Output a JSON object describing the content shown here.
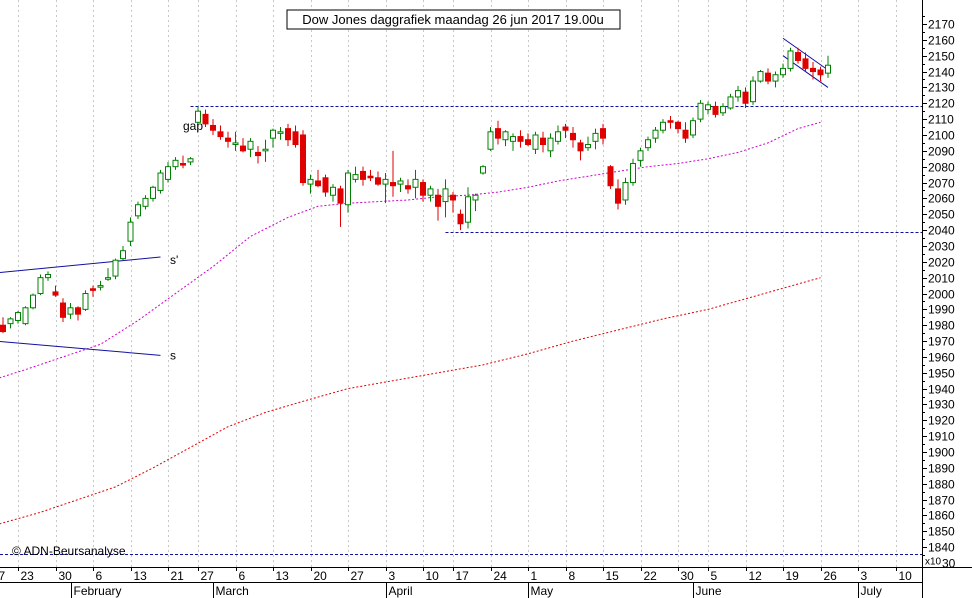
{
  "chart_data": {
    "type": "candlestick",
    "title": "Dow Jones daggrafiek maandag 26 jun 2017 19.00u",
    "watermark": "© ADN-Beursanalyse",
    "y_axis": {
      "min": 1830,
      "max": 2180,
      "ticks": [
        1840,
        1850,
        1860,
        1870,
        1880,
        1890,
        1900,
        1910,
        1920,
        1930,
        1940,
        1950,
        1960,
        1970,
        1980,
        1990,
        2000,
        2010,
        2020,
        2030,
        2040,
        2050,
        2060,
        2070,
        2080,
        2090,
        2100,
        2110,
        2120,
        2130,
        2140,
        2150,
        2160,
        2170
      ],
      "multiplier_label": "x10"
    },
    "x_axis": {
      "day_labels": [
        {
          "slot": -1,
          "label": "7"
        },
        {
          "slot": 2,
          "label": "23"
        },
        {
          "slot": 7,
          "label": "30"
        },
        {
          "slot": 12,
          "label": "6"
        },
        {
          "slot": 17,
          "label": "13"
        },
        {
          "slot": 22,
          "label": "21"
        },
        {
          "slot": 26,
          "label": "27"
        },
        {
          "slot": 31,
          "label": "6"
        },
        {
          "slot": 36,
          "label": "13"
        },
        {
          "slot": 41,
          "label": "20"
        },
        {
          "slot": 46,
          "label": "27"
        },
        {
          "slot": 51,
          "label": "3"
        },
        {
          "slot": 56,
          "label": "10"
        },
        {
          "slot": 60,
          "label": "17"
        },
        {
          "slot": 65,
          "label": "24"
        },
        {
          "slot": 70,
          "label": "1"
        },
        {
          "slot": 75,
          "label": "8"
        },
        {
          "slot": 80,
          "label": "15"
        },
        {
          "slot": 85,
          "label": "22"
        },
        {
          "slot": 90,
          "label": "30"
        },
        {
          "slot": 94,
          "label": "5"
        },
        {
          "slot": 99,
          "label": "12"
        },
        {
          "slot": 104,
          "label": "19"
        },
        {
          "slot": 109,
          "label": "26"
        },
        {
          "slot": 114,
          "label": "3"
        },
        {
          "slot": 119,
          "label": "10"
        }
      ],
      "month_labels": [
        {
          "slot": 9,
          "label": "February"
        },
        {
          "slot": 28,
          "label": "March"
        },
        {
          "slot": 51,
          "label": "April"
        },
        {
          "slot": 70,
          "label": "May"
        },
        {
          "slot": 92,
          "label": "June"
        },
        {
          "slot": 114,
          "label": "July"
        }
      ]
    },
    "candles": [
      [
        1980,
        1985,
        1975,
        1976
      ],
      [
        1981,
        1985,
        1978,
        1984
      ],
      [
        1983,
        1989,
        1981,
        1988
      ],
      [
        1981,
        1992,
        1980,
        1991
      ],
      [
        1991,
        2000,
        1990,
        1999
      ],
      [
        2000,
        2012,
        1999,
        2010
      ],
      [
        2010,
        2014,
        2008,
        2012
      ],
      [
        2001,
        2005,
        1998,
        1999
      ],
      [
        1994,
        1997,
        1982,
        1985
      ],
      [
        1987,
        1994,
        1984,
        1991
      ],
      [
        1991,
        1992,
        1983,
        1987
      ],
      [
        1990,
        2002,
        1989,
        2000
      ],
      [
        2003,
        2005,
        1998,
        2002
      ],
      [
        2004,
        2008,
        2002,
        2005
      ],
      [
        2009,
        2016,
        2008,
        2010
      ],
      [
        2011,
        2022,
        2009,
        2021
      ],
      [
        2022,
        2030,
        2021,
        2027
      ],
      [
        2033,
        2048,
        2030,
        2045
      ],
      [
        2049,
        2058,
        2047,
        2056
      ],
      [
        2055,
        2062,
        2053,
        2060
      ],
      [
        2060,
        2068,
        2058,
        2067
      ],
      [
        2065,
        2078,
        2063,
        2076
      ],
      [
        2072,
        2083,
        2070,
        2080
      ],
      [
        2080,
        2086,
        2078,
        2084
      ],
      [
        2082,
        2087,
        2079,
        2081
      ],
      [
        2083,
        2086,
        2081,
        2085
      ],
      [
        2108,
        2118,
        2107,
        2115
      ],
      [
        2113,
        2116,
        2105,
        2107
      ],
      [
        2106,
        2110,
        2100,
        2103
      ],
      [
        2102,
        2106,
        2097,
        2099
      ],
      [
        2098,
        2102,
        2092,
        2096
      ],
      [
        2094,
        2102,
        2090,
        2095
      ],
      [
        2093,
        2098,
        2089,
        2090
      ],
      [
        2091,
        2098,
        2086,
        2096
      ],
      [
        2089,
        2093,
        2082,
        2087
      ],
      [
        2090,
        2097,
        2083,
        2091
      ],
      [
        2098,
        2104,
        2092,
        2103
      ],
      [
        2101,
        2105,
        2097,
        2102
      ],
      [
        2104,
        2107,
        2093,
        2097
      ],
      [
        2102,
        2106,
        2092,
        2094
      ],
      [
        2100,
        2103,
        2068,
        2070
      ],
      [
        2069,
        2075,
        2063,
        2072
      ],
      [
        2071,
        2078,
        2067,
        2068
      ],
      [
        2073,
        2075,
        2061,
        2064
      ],
      [
        2062,
        2069,
        2058,
        2067
      ],
      [
        2066,
        2068,
        2042,
        2057
      ],
      [
        2056,
        2078,
        2051,
        2076
      ],
      [
        2072,
        2080,
        2070,
        2075
      ],
      [
        2077,
        2080,
        2068,
        2072
      ],
      [
        2074,
        2078,
        2071,
        2073
      ],
      [
        2073,
        2077,
        2068,
        2069
      ],
      [
        2069,
        2076,
        2057,
        2072
      ],
      [
        2070,
        2090,
        2061,
        2068
      ],
      [
        2069,
        2073,
        2064,
        2071
      ],
      [
        2068,
        2072,
        2063,
        2066
      ],
      [
        2067,
        2078,
        2060,
        2072
      ],
      [
        2070,
        2072,
        2058,
        2062
      ],
      [
        2062,
        2068,
        2058,
        2066
      ],
      [
        2062,
        2066,
        2046,
        2055
      ],
      [
        2058,
        2072,
        2048,
        2066
      ],
      [
        2062,
        2064,
        2051,
        2059
      ],
      [
        2050,
        2053,
        2040,
        2044
      ],
      [
        2045,
        2067,
        2041,
        2061
      ],
      [
        2059,
        2063,
        2052,
        2062
      ],
      [
        2076,
        2081,
        2075,
        2080
      ],
      [
        2091,
        2105,
        2090,
        2102
      ],
      [
        2104,
        2109,
        2094,
        2098
      ],
      [
        2097,
        2103,
        2093,
        2102
      ],
      [
        2096,
        2101,
        2090,
        2099
      ],
      [
        2099,
        2103,
        2092,
        2096
      ],
      [
        2097,
        2101,
        2093,
        2094
      ],
      [
        2091,
        2102,
        2088,
        2100
      ],
      [
        2098,
        2102,
        2089,
        2094
      ],
      [
        2090,
        2101,
        2086,
        2098
      ],
      [
        2096,
        2106,
        2094,
        2102
      ],
      [
        2105,
        2107,
        2098,
        2103
      ],
      [
        2101,
        2105,
        2092,
        2097
      ],
      [
        2095,
        2097,
        2084,
        2090
      ],
      [
        2092,
        2099,
        2090,
        2094
      ],
      [
        2096,
        2104,
        2091,
        2101
      ],
      [
        2104,
        2107,
        2094,
        2098
      ],
      [
        2080,
        2081,
        2066,
        2068
      ],
      [
        2066,
        2072,
        2053,
        2057
      ],
      [
        2059,
        2073,
        2056,
        2070
      ],
      [
        2070,
        2085,
        2068,
        2082
      ],
      [
        2084,
        2092,
        2080,
        2090
      ],
      [
        2092,
        2099,
        2090,
        2097
      ],
      [
        2098,
        2105,
        2095,
        2103
      ],
      [
        2103,
        2110,
        2101,
        2108
      ],
      [
        2109,
        2112,
        2104,
        2108
      ],
      [
        2108,
        2109,
        2101,
        2104
      ],
      [
        2103,
        2108,
        2095,
        2098
      ],
      [
        2100,
        2111,
        2098,
        2109
      ],
      [
        2110,
        2122,
        2108,
        2120
      ],
      [
        2116,
        2121,
        2113,
        2119
      ],
      [
        2118,
        2121,
        2111,
        2113
      ],
      [
        2114,
        2120,
        2112,
        2118
      ],
      [
        2117,
        2126,
        2116,
        2124
      ],
      [
        2124,
        2131,
        2121,
        2128
      ],
      [
        2127,
        2130,
        2117,
        2120
      ],
      [
        2121,
        2137,
        2119,
        2134
      ],
      [
        2134,
        2141,
        2133,
        2140
      ],
      [
        2139,
        2142,
        2132,
        2134
      ],
      [
        2134,
        2140,
        2130,
        2138
      ],
      [
        2138,
        2145,
        2136,
        2142
      ],
      [
        2142,
        2155,
        2140,
        2153
      ],
      [
        2152,
        2155,
        2145,
        2147
      ],
      [
        2148,
        2152,
        2140,
        2142
      ],
      [
        2142,
        2146,
        2135,
        2140
      ],
      [
        2141,
        2143,
        2134,
        2138
      ],
      [
        2139,
        2150,
        2136,
        2144
      ]
    ],
    "ma_short": {
      "color": "#d000d0",
      "points": [
        [
          -1,
          1946
        ],
        [
          3,
          1952
        ],
        [
          8,
          1960
        ],
        [
          13,
          1968
        ],
        [
          18,
          1983
        ],
        [
          23,
          2000
        ],
        [
          28,
          2017
        ],
        [
          33,
          2036
        ],
        [
          38,
          2048
        ],
        [
          42,
          2055
        ],
        [
          46,
          2057
        ],
        [
          50,
          2058
        ],
        [
          54,
          2059
        ],
        [
          58,
          2061
        ],
        [
          62,
          2062
        ],
        [
          66,
          2064
        ],
        [
          70,
          2067
        ],
        [
          74,
          2071
        ],
        [
          78,
          2074
        ],
        [
          82,
          2077
        ],
        [
          86,
          2080
        ],
        [
          90,
          2082
        ],
        [
          94,
          2085
        ],
        [
          98,
          2089
        ],
        [
          102,
          2095
        ],
        [
          106,
          2104
        ],
        [
          109,
          2108
        ]
      ]
    },
    "ma_long": {
      "color": "#e00000",
      "points": [
        [
          -1,
          1854
        ],
        [
          5,
          1862
        ],
        [
          10,
          1870
        ],
        [
          15,
          1878
        ],
        [
          20,
          1890
        ],
        [
          25,
          1903
        ],
        [
          30,
          1916
        ],
        [
          35,
          1925
        ],
        [
          40,
          1932
        ],
        [
          46,
          1940
        ],
        [
          52,
          1945
        ],
        [
          58,
          1950
        ],
        [
          64,
          1955
        ],
        [
          70,
          1962
        ],
        [
          76,
          1970
        ],
        [
          82,
          1977
        ],
        [
          88,
          1984
        ],
        [
          94,
          1990
        ],
        [
          100,
          1998
        ],
        [
          106,
          2006
        ],
        [
          109,
          2010
        ]
      ]
    },
    "trend_lines": [
      {
        "name": "s'",
        "color": "#1010a0",
        "from": [
          -1,
          2013
        ],
        "to": [
          21,
          2023
        ],
        "label_slot": 22,
        "label_value": 2021
      },
      {
        "name": "s",
        "color": "#1010a0",
        "from": [
          -1,
          1970
        ],
        "to": [
          21,
          1961
        ],
        "label_slot": 22,
        "label_value": 1961
      },
      {
        "name": "channel-upper",
        "color": "#1010a0",
        "from": [
          104,
          2161
        ],
        "to": [
          110,
          2141
        ]
      },
      {
        "name": "channel-lower",
        "color": "#1010a0",
        "from": [
          104,
          2150
        ],
        "to": [
          110,
          2130
        ]
      }
    ],
    "horizontal_levels": [
      {
        "value": 2118,
        "from_slot": 25,
        "color": "#1010a0"
      },
      {
        "value": 2039,
        "from_slot": 59,
        "color": "#1010a0"
      },
      {
        "value": 1836,
        "from_slot": -1,
        "color": "#1010a0"
      }
    ],
    "annotations": [
      {
        "text": "gap",
        "slot": 24,
        "value": 2103,
        "color": "#a8a8a8"
      }
    ],
    "colors": {
      "up": "#008000",
      "down": "#e00000",
      "grid": "#c8c8c8",
      "level": "#1010a0"
    }
  }
}
